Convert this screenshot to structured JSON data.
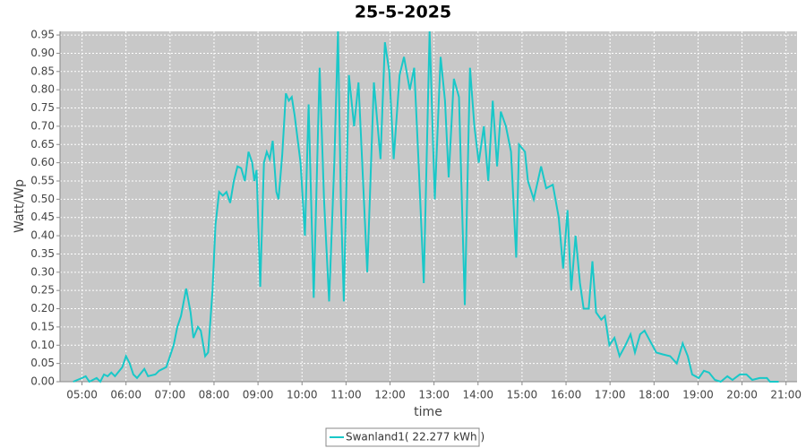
{
  "chart_data": {
    "type": "line",
    "title": "25-5-2025",
    "xlabel": "time",
    "ylabel": "Watt/Wp",
    "x": [
      "04:48",
      "05:00",
      "05:05",
      "05:10",
      "05:20",
      "05:25",
      "05:30",
      "05:35",
      "05:40",
      "05:45",
      "05:55",
      "06:00",
      "06:05",
      "06:10",
      "06:15",
      "06:25",
      "06:30",
      "06:40",
      "06:45",
      "06:55",
      "07:00",
      "07:05",
      "07:10",
      "07:15",
      "07:22",
      "07:28",
      "07:32",
      "07:38",
      "07:42",
      "07:48",
      "07:52",
      "07:58",
      "08:02",
      "08:07",
      "08:12",
      "08:17",
      "08:22",
      "08:27",
      "08:32",
      "08:37",
      "08:42",
      "08:47",
      "08:52",
      "08:55",
      "08:58",
      "09:03",
      "09:08",
      "09:12",
      "09:16",
      "09:20",
      "09:25",
      "09:28",
      "09:33",
      "09:38",
      "09:42",
      "09:46",
      "09:50",
      "09:58",
      "10:04",
      "10:09",
      "10:16",
      "10:24",
      "10:30",
      "10:37",
      "10:44",
      "10:49",
      "10:53",
      "10:57",
      "11:04",
      "11:11",
      "11:17",
      "11:29",
      "11:38",
      "11:47",
      "11:53",
      "11:59",
      "12:05",
      "12:13",
      "12:19",
      "12:27",
      "12:33",
      "12:39",
      "12:46",
      "12:54",
      "13:01",
      "13:09",
      "13:15",
      "13:20",
      "13:27",
      "13:34",
      "13:42",
      "13:49",
      "13:55",
      "14:01",
      "14:08",
      "14:14",
      "14:20",
      "14:26",
      "14:31",
      "14:38",
      "14:45",
      "14:52",
      "14:56",
      "15:04",
      "15:08",
      "15:16",
      "15:26",
      "15:33",
      "15:42",
      "15:50",
      "15:56",
      "16:02",
      "16:07",
      "16:13",
      "16:19",
      "16:24",
      "16:31",
      "16:36",
      "16:41",
      "16:48",
      "16:53",
      "16:59",
      "17:06",
      "17:13",
      "17:21",
      "17:28",
      "17:34",
      "17:41",
      "17:47",
      "17:55",
      "18:03",
      "18:12",
      "18:22",
      "18:31",
      "18:39",
      "18:46",
      "18:52",
      "19:01",
      "19:08",
      "19:15",
      "19:23",
      "19:31",
      "19:40",
      "19:47",
      "19:57",
      "20:06",
      "20:14",
      "20:24",
      "20:34",
      "20:38",
      "20:50"
    ],
    "series": [
      {
        "name": "Swanland1( 22.277 kWh )",
        "color": "#19c8c8",
        "values": [
          0.0,
          0.01,
          0.015,
          0.0,
          0.01,
          0.0,
          0.02,
          0.015,
          0.025,
          0.015,
          0.04,
          0.07,
          0.05,
          0.02,
          0.01,
          0.035,
          0.015,
          0.02,
          0.03,
          0.04,
          0.07,
          0.1,
          0.15,
          0.18,
          0.255,
          0.19,
          0.12,
          0.15,
          0.14,
          0.07,
          0.08,
          0.25,
          0.43,
          0.52,
          0.51,
          0.52,
          0.49,
          0.55,
          0.59,
          0.585,
          0.55,
          0.63,
          0.6,
          0.55,
          0.58,
          0.26,
          0.6,
          0.63,
          0.61,
          0.66,
          0.52,
          0.5,
          0.62,
          0.79,
          0.77,
          0.78,
          0.73,
          0.6,
          0.4,
          0.76,
          0.23,
          0.86,
          0.5,
          0.22,
          0.6,
          0.96,
          0.5,
          0.22,
          0.84,
          0.7,
          0.82,
          0.3,
          0.82,
          0.61,
          0.93,
          0.85,
          0.61,
          0.84,
          0.89,
          0.8,
          0.86,
          0.6,
          0.27,
          0.96,
          0.5,
          0.89,
          0.77,
          0.56,
          0.83,
          0.78,
          0.21,
          0.86,
          0.7,
          0.6,
          0.7,
          0.55,
          0.77,
          0.59,
          0.74,
          0.7,
          0.63,
          0.34,
          0.65,
          0.63,
          0.55,
          0.5,
          0.59,
          0.53,
          0.54,
          0.45,
          0.31,
          0.47,
          0.25,
          0.4,
          0.27,
          0.2,
          0.2,
          0.33,
          0.19,
          0.17,
          0.18,
          0.1,
          0.12,
          0.07,
          0.1,
          0.13,
          0.08,
          0.13,
          0.14,
          0.11,
          0.08,
          0.075,
          0.07,
          0.05,
          0.105,
          0.07,
          0.02,
          0.01,
          0.03,
          0.025,
          0.005,
          0.0,
          0.015,
          0.005,
          0.02,
          0.02,
          0.005,
          0.01,
          0.01,
          0.0,
          0.0
        ]
      }
    ],
    "xlim": [
      "04:30",
      "21:15"
    ],
    "xticks": [
      "05:00",
      "06:00",
      "07:00",
      "08:00",
      "09:00",
      "10:00",
      "11:00",
      "12:00",
      "13:00",
      "14:00",
      "15:00",
      "16:00",
      "17:00",
      "18:00",
      "19:00",
      "20:00",
      "21:00"
    ],
    "ylim": [
      0,
      0.96
    ],
    "yticks": [
      {
        "value": 0,
        "label": "0.00"
      },
      {
        "value": 0.05,
        "label": "0.05"
      },
      {
        "value": 0.1,
        "label": "0.10"
      },
      {
        "value": 0.15,
        "label": "0.15"
      },
      {
        "value": 0.2,
        "label": "0.20"
      },
      {
        "value": 0.25,
        "label": "0.25"
      },
      {
        "value": 0.3,
        "label": "0.30"
      },
      {
        "value": 0.35,
        "label": "0.35"
      },
      {
        "value": 0.4,
        "label": "0.40"
      },
      {
        "value": 0.45,
        "label": "0.45"
      },
      {
        "value": 0.5,
        "label": "0.50"
      },
      {
        "value": 0.55,
        "label": "0.55"
      },
      {
        "value": 0.6,
        "label": "0.60"
      },
      {
        "value": 0.65,
        "label": "0.65"
      },
      {
        "value": 0.7,
        "label": "0.70"
      },
      {
        "value": 0.75,
        "label": "0.75"
      },
      {
        "value": 0.8,
        "label": "0.80"
      },
      {
        "value": 0.85,
        "label": "0.85"
      },
      {
        "value": 0.9,
        "label": "0.90"
      },
      {
        "value": 0.95,
        "label": "0.95"
      }
    ],
    "grid": true,
    "legend": "bottom"
  }
}
